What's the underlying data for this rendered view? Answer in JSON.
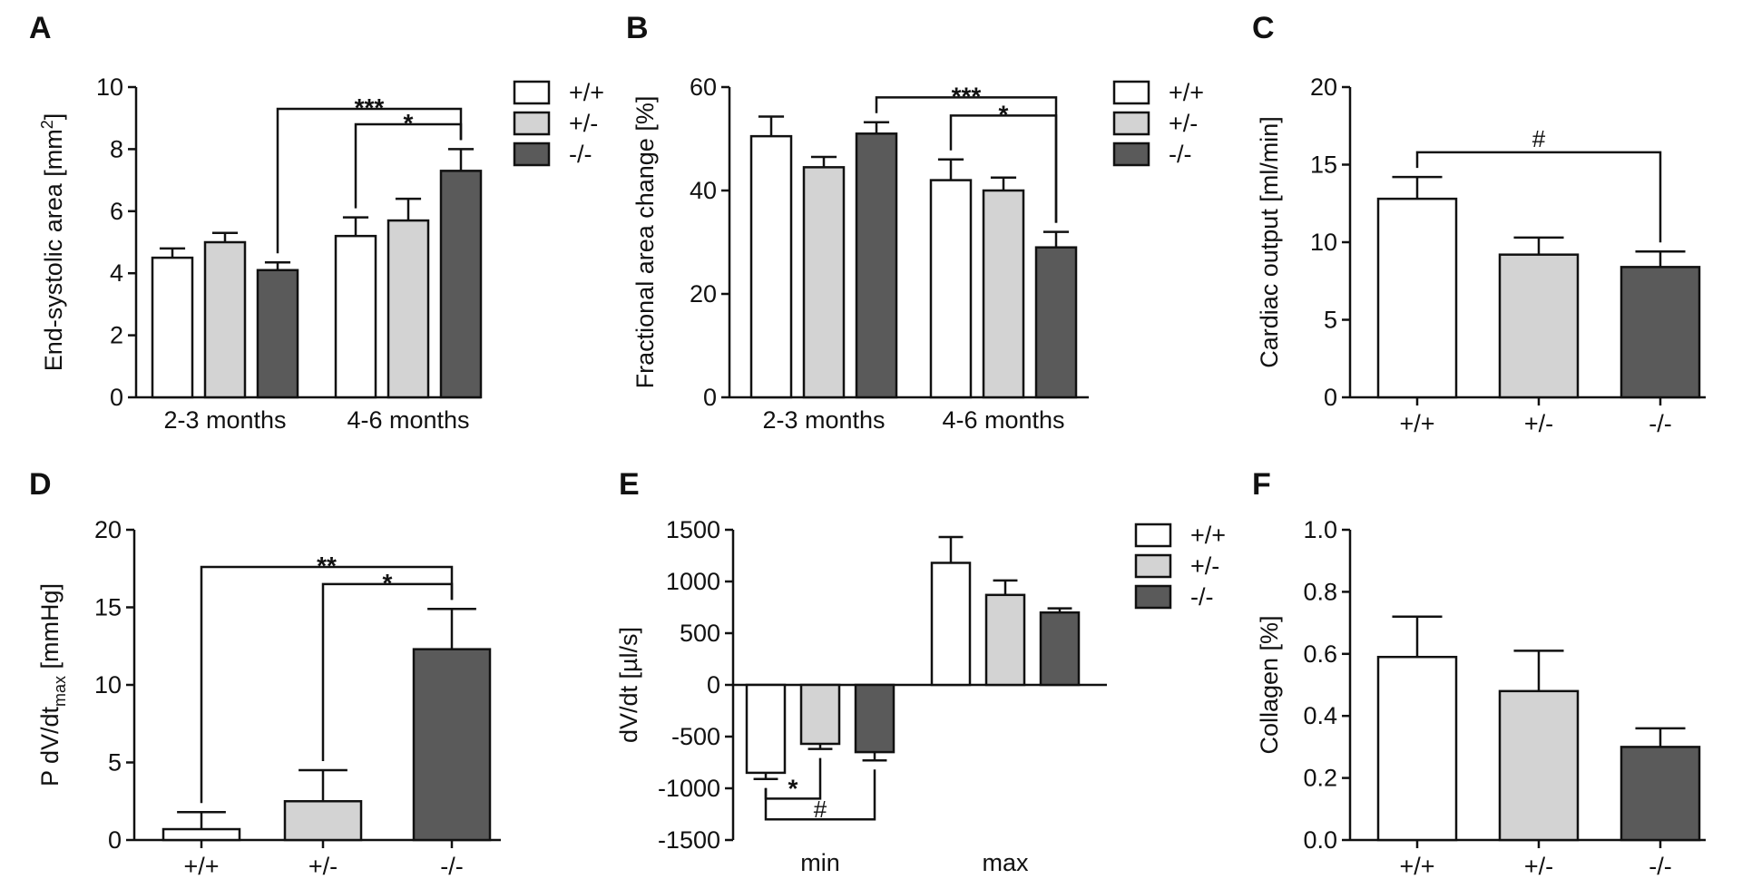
{
  "colors": {
    "wt": "#ffffff",
    "het": "#d3d3d3",
    "ko": "#5a5a5a",
    "stroke": "#111111"
  },
  "legend_labels": [
    "+/+",
    "+/-",
    "-/-"
  ],
  "chart_data": [
    {
      "panel": "A",
      "type": "bar",
      "ylabel_main": "End-systolic area [mm",
      "ylabel_sup": "2",
      "ylabel_tail": "]",
      "ylim": [
        0,
        10
      ],
      "yticks": [
        0,
        2,
        4,
        6,
        8,
        10
      ],
      "categories": [
        "2-3 months",
        "4-6 months"
      ],
      "series": [
        {
          "name": "+/+",
          "values": [
            4.5,
            5.2
          ],
          "errors": [
            0.3,
            0.6
          ]
        },
        {
          "name": "+/-",
          "values": [
            5.0,
            5.7
          ],
          "errors": [
            0.3,
            0.7
          ]
        },
        {
          "name": "-/-",
          "values": [
            4.1,
            7.3
          ],
          "errors": [
            0.25,
            0.7
          ]
        }
      ],
      "legend": true,
      "annotations": [
        {
          "label": "***",
          "from": [
            0,
            2
          ],
          "to": [
            1,
            2
          ],
          "y": 9.3
        },
        {
          "label": "*",
          "from": [
            1,
            0
          ],
          "to": [
            1,
            2
          ],
          "y": 8.8
        }
      ]
    },
    {
      "panel": "B",
      "type": "bar",
      "ylabel_main": "Fractional area change [%]",
      "ylim": [
        0,
        60
      ],
      "yticks": [
        0,
        20,
        40,
        60
      ],
      "categories": [
        "2-3 months",
        "4-6 months"
      ],
      "series": [
        {
          "name": "+/+",
          "values": [
            50.5,
            42.0
          ],
          "errors": [
            3.8,
            4.0
          ]
        },
        {
          "name": "+/-",
          "values": [
            44.5,
            40.0
          ],
          "errors": [
            2.0,
            2.5
          ]
        },
        {
          "name": "-/-",
          "values": [
            51.0,
            29.0
          ],
          "errors": [
            2.2,
            3.0
          ]
        }
      ],
      "legend": true,
      "annotations": [
        {
          "label": "***",
          "from": [
            0,
            2
          ],
          "to": [
            1,
            2
          ],
          "y": 58.0
        },
        {
          "label": "*",
          "from": [
            1,
            0
          ],
          "to": [
            1,
            2
          ],
          "y": 54.5
        }
      ]
    },
    {
      "panel": "C",
      "type": "bar",
      "ylabel_main": "Cardiac output [ml/min]",
      "ylim": [
        0,
        20
      ],
      "yticks": [
        0,
        5,
        10,
        15,
        20
      ],
      "categories": [
        "+/+",
        "+/-",
        "-/-"
      ],
      "values": [
        12.8,
        9.2,
        8.4
      ],
      "errors": [
        1.4,
        1.1,
        1.0
      ],
      "legend": false,
      "annotations": [
        {
          "label": "#",
          "from": 0,
          "to": 2,
          "y": 15.8
        }
      ]
    },
    {
      "panel": "D",
      "type": "bar",
      "ylabel_main": "P dV/dt",
      "ylabel_sub": "max",
      "ylabel_tail": " [mmHg]",
      "ylim": [
        0,
        20
      ],
      "yticks": [
        0,
        5,
        10,
        15,
        20
      ],
      "categories": [
        "+/+",
        "+/-",
        "-/-"
      ],
      "values": [
        0.7,
        2.5,
        12.3
      ],
      "errors": [
        1.1,
        2.0,
        2.6
      ],
      "legend": false,
      "annotations": [
        {
          "label": "**",
          "from": 0,
          "to": 2,
          "y": 17.6
        },
        {
          "label": "*",
          "from": 1,
          "to": 2,
          "y": 16.5
        }
      ]
    },
    {
      "panel": "E",
      "type": "bar",
      "ylabel_main": "dV/dt [µl/s]",
      "ylim": [
        -1500,
        1500
      ],
      "yticks": [
        -1500,
        -1000,
        -500,
        0,
        500,
        1000,
        1500
      ],
      "categories": [
        "min",
        "max"
      ],
      "series": [
        {
          "name": "+/+",
          "values": [
            -850,
            1180
          ],
          "errors": [
            60,
            250
          ]
        },
        {
          "name": "+/-",
          "values": [
            -570,
            870
          ],
          "errors": [
            50,
            140
          ]
        },
        {
          "name": "-/-",
          "values": [
            -650,
            700
          ],
          "errors": [
            80,
            40
          ]
        }
      ],
      "legend": true,
      "annotations": [
        {
          "label": "*",
          "from": [
            0,
            0
          ],
          "to": [
            0,
            1
          ],
          "y": -1100
        },
        {
          "label": "#",
          "from": [
            0,
            0
          ],
          "to": [
            0,
            2
          ],
          "y": -1300
        }
      ]
    },
    {
      "panel": "F",
      "type": "bar",
      "ylabel_main": "Collagen [%]",
      "ylim": [
        0,
        1.0
      ],
      "yticks": [
        0.0,
        0.2,
        0.4,
        0.6,
        0.8,
        1.0
      ],
      "ytick_labels": [
        "0.0",
        "0.2",
        "0.4",
        "0.6",
        "0.8",
        "1.0"
      ],
      "categories": [
        "+/+",
        "+/-",
        "-/-"
      ],
      "values": [
        0.59,
        0.48,
        0.3
      ],
      "errors": [
        0.13,
        0.13,
        0.06
      ],
      "legend": false,
      "annotations": []
    }
  ]
}
